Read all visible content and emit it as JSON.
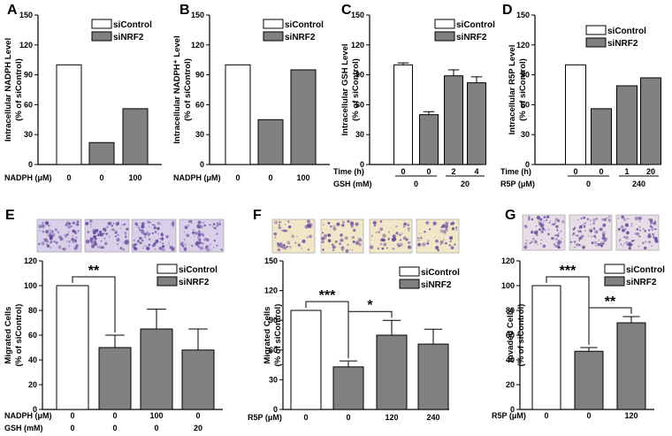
{
  "colors": {
    "control": "#ffffff",
    "nrf2": "#808080",
    "axis": "#000000",
    "stain_purple": "#6a4a9c",
    "stain_bg": "#f2e6c9"
  },
  "chart_data": [
    {
      "id": "A",
      "type": "bar",
      "panel_label": "A",
      "ylabel": [
        "Intracellular NADPH Level",
        "(% of siControl)"
      ],
      "ylim": [
        0,
        150
      ],
      "yticks": [
        0,
        30,
        60,
        90,
        120,
        150
      ],
      "legend": [
        "siControl",
        "siNRF2"
      ],
      "bars": [
        {
          "value": 100,
          "group": "siControl"
        },
        {
          "value": 22,
          "group": "siNRF2"
        },
        {
          "value": 56,
          "group": "siNRF2"
        }
      ],
      "conditions": [
        {
          "name": "NADPH (μM)",
          "values": [
            "0",
            "0",
            "100"
          ]
        }
      ]
    },
    {
      "id": "B",
      "type": "bar",
      "panel_label": "B",
      "ylabel": [
        "Intracellular NADPH⁺ Level",
        "(% of siControl)"
      ],
      "ylim": [
        0,
        150
      ],
      "yticks": [
        0,
        30,
        60,
        90,
        120,
        150
      ],
      "legend": [
        "siControl",
        "siNRF2"
      ],
      "bars": [
        {
          "value": 100,
          "group": "siControl"
        },
        {
          "value": 45,
          "group": "siNRF2"
        },
        {
          "value": 95,
          "group": "siNRF2"
        }
      ],
      "conditions": [
        {
          "name": "NADPH (μM)",
          "values": [
            "0",
            "0",
            "100"
          ]
        }
      ]
    },
    {
      "id": "C",
      "type": "bar",
      "panel_label": "C",
      "ylabel": [
        "Intracellular GSH Level",
        "(% of siControl)"
      ],
      "ylim": [
        0,
        150
      ],
      "yticks": [
        0,
        30,
        60,
        90,
        120,
        150
      ],
      "legend": [
        "siControl",
        "siNRF2"
      ],
      "bars": [
        {
          "value": 100,
          "error": 2,
          "group": "siControl"
        },
        {
          "value": 50,
          "error": 3,
          "group": "siNRF2"
        },
        {
          "value": 89,
          "error": 6,
          "group": "siNRF2"
        },
        {
          "value": 82,
          "error": 6,
          "group": "siNRF2"
        }
      ],
      "conditions": [
        {
          "name": "Time (h)",
          "values": [
            "0",
            "0",
            "2",
            "4"
          ]
        },
        {
          "name": "GSH (mM)",
          "groups": [
            {
              "label": "0",
              "span": [
                0,
                1
              ]
            },
            {
              "label": "20",
              "span": [
                2,
                3
              ]
            }
          ]
        }
      ]
    },
    {
      "id": "D",
      "type": "bar",
      "panel_label": "D",
      "ylabel": [
        "Intracellular R5P Level",
        "(% of siControl)"
      ],
      "ylim": [
        0,
        150
      ],
      "yticks": [
        0,
        30,
        60,
        90,
        120,
        150
      ],
      "legend": [
        "siControl",
        "siNRF2"
      ],
      "bars": [
        {
          "value": 100,
          "group": "siControl"
        },
        {
          "value": 56,
          "group": "siNRF2"
        },
        {
          "value": 79,
          "group": "siNRF2"
        },
        {
          "value": 87,
          "group": "siNRF2"
        }
      ],
      "conditions": [
        {
          "name": "Time (h)",
          "values": [
            "0",
            "0",
            "1",
            "20"
          ]
        },
        {
          "name": "R5P (μM)",
          "groups": [
            {
              "label": "0",
              "span": [
                0,
                1
              ]
            },
            {
              "label": "240",
              "span": [
                2,
                3
              ]
            }
          ]
        }
      ]
    },
    {
      "id": "E",
      "type": "bar",
      "panel_label": "E",
      "ylabel": [
        "Migrated Cells",
        "(% of siControl)"
      ],
      "ylim": [
        0,
        120
      ],
      "yticks": [
        0,
        20,
        40,
        60,
        80,
        100,
        120
      ],
      "legend": [
        "siControl",
        "siNRF2"
      ],
      "bars": [
        {
          "value": 100,
          "group": "siControl"
        },
        {
          "value": 50,
          "error": 10,
          "group": "siNRF2"
        },
        {
          "value": 65,
          "error": 16,
          "group": "siNRF2"
        },
        {
          "value": 48,
          "error": 17,
          "group": "siNRF2"
        }
      ],
      "conditions": [
        {
          "name": "NADPH (μM)",
          "values": [
            "0",
            "0",
            "100",
            "0"
          ]
        },
        {
          "name": "GSH (mM)",
          "values": [
            "0",
            "0",
            "0",
            "20"
          ]
        }
      ],
      "significance": [
        {
          "from": 0,
          "to": 1,
          "label": "**"
        }
      ],
      "micrographs": 4
    },
    {
      "id": "F",
      "type": "bar",
      "panel_label": "F",
      "ylabel": [
        "Migrated Cells",
        "(% of siControl)"
      ],
      "ylim": [
        0,
        150
      ],
      "yticks": [
        0,
        30,
        60,
        90,
        120,
        150
      ],
      "legend": [
        "siControl",
        "siNRF2"
      ],
      "bars": [
        {
          "value": 100,
          "group": "siControl"
        },
        {
          "value": 43,
          "error": 6,
          "group": "siNRF2"
        },
        {
          "value": 75,
          "error": 15,
          "group": "siNRF2"
        },
        {
          "value": 66,
          "error": 15,
          "group": "siNRF2"
        }
      ],
      "conditions": [
        {
          "name": "R5P (μM)",
          "values": [
            "0",
            "0",
            "120",
            "240"
          ]
        }
      ],
      "significance": [
        {
          "from": 0,
          "to": 1,
          "label": "***"
        },
        {
          "from": 1,
          "to": 2,
          "label": "*"
        }
      ],
      "micrographs": 4
    },
    {
      "id": "G",
      "type": "bar",
      "panel_label": "G",
      "ylabel": [
        "Invaded Cells",
        "(% of siControl)"
      ],
      "ylim": [
        0,
        120
      ],
      "yticks": [
        0,
        20,
        40,
        60,
        80,
        100,
        120
      ],
      "legend": [
        "siControl",
        "siNRF2"
      ],
      "bars": [
        {
          "value": 100,
          "group": "siControl"
        },
        {
          "value": 47,
          "error": 3,
          "group": "siNRF2"
        },
        {
          "value": 70,
          "error": 5,
          "group": "siNRF2"
        }
      ],
      "conditions": [
        {
          "name": "R5P (μM)",
          "values": [
            "0",
            "0",
            "120"
          ]
        }
      ],
      "significance": [
        {
          "from": 0,
          "to": 1,
          "label": "***"
        },
        {
          "from": 1,
          "to": 2,
          "label": "**"
        }
      ],
      "micrographs": 3
    }
  ]
}
